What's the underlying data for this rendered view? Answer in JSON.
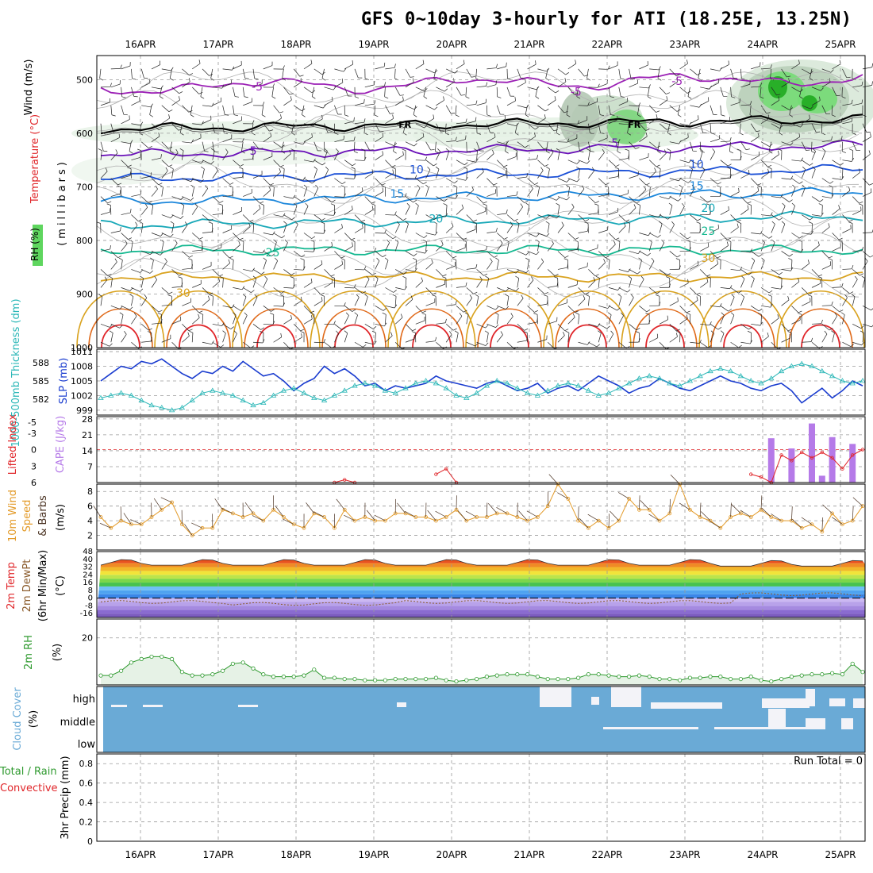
{
  "title": "GFS 0~10day 3-hourly for ATI (18.25E, 13.25N)",
  "date_labels": [
    "16APR",
    "17APR",
    "18APR",
    "19APR",
    "20APR",
    "21APR",
    "22APR",
    "23APR",
    "24APR",
    "25APR"
  ],
  "colors": {
    "freezing": "#000000",
    "t_neg": "#9b1fb5",
    "t_5": "#6a11b8",
    "t_10": "#1a4fd6",
    "t_15": "#1a86db",
    "t_20": "#18a8b8",
    "t_25": "#14b890",
    "t_30": "#d9a21e",
    "t_35": "#e06a1a",
    "t_40": "#e0262a",
    "rh": "#5fd65f",
    "slp": "#1a3ccf",
    "thickness": "#2bb7b7",
    "cape": "#b57ae8",
    "li": "#e0262a",
    "wind10": "#e39b2a",
    "rh2m": "#2f9a2f",
    "cloud": "#6aaad6"
  },
  "chart_data": [
    {
      "type": "contour",
      "panel": "upper_air",
      "ylabel_parts": [
        "Wind (m/s)",
        "Temperature (°C)",
        "RH (%)",
        "(millibars)"
      ],
      "yticks": [
        500,
        600,
        700,
        800,
        900,
        1000
      ],
      "ylim": [
        1000,
        455
      ],
      "contour_labels": [
        {
          "text": "-5",
          "x": 1.5,
          "p": 520
        },
        {
          "text": "-5",
          "x": 6.9,
          "p": 510
        },
        {
          "text": "-5",
          "x": 5.6,
          "p": 530
        },
        {
          "text": "5",
          "x": 1.45,
          "p": 640
        },
        {
          "text": "5",
          "x": 6.1,
          "p": 625
        },
        {
          "text": "FR",
          "x": 3.4,
          "p": 590
        },
        {
          "text": "FR",
          "x": 6.35,
          "p": 590
        },
        {
          "text": "10",
          "x": 3.55,
          "p": 675
        },
        {
          "text": "10",
          "x": 7.15,
          "p": 665
        },
        {
          "text": "15",
          "x": 3.3,
          "p": 720
        },
        {
          "text": "15",
          "x": 7.15,
          "p": 705
        },
        {
          "text": "20",
          "x": 3.8,
          "p": 767
        },
        {
          "text": "20",
          "x": 7.3,
          "p": 747
        },
        {
          "text": "25",
          "x": 1.7,
          "p": 830
        },
        {
          "text": "25",
          "x": 7.3,
          "p": 790
        },
        {
          "text": "30",
          "x": 0.55,
          "p": 905
        },
        {
          "text": "30",
          "x": 7.3,
          "p": 840
        }
      ],
      "isotherms": [
        {
          "label": "-5",
          "colorKey": "t_neg",
          "base": 515
        },
        {
          "label": "FR",
          "colorKey": "freezing",
          "base": 592
        },
        {
          "label": "5",
          "colorKey": "t_5",
          "base": 640
        },
        {
          "label": "10",
          "colorKey": "t_10",
          "base": 685
        },
        {
          "label": "15",
          "colorKey": "t_15",
          "base": 728
        },
        {
          "label": "20",
          "colorKey": "t_20",
          "base": 772
        },
        {
          "label": "25",
          "colorKey": "t_25",
          "base": 818
        },
        {
          "label": "30",
          "colorKey": "t_30",
          "base": 868
        }
      ]
    },
    {
      "type": "line",
      "panel": "slp_thickness",
      "ylabel_left": "1000-500mb Thickness (dm)",
      "ylabel_right": "SLP (mb)",
      "yticks_left": [
        582,
        585,
        588
      ],
      "yticks_right": [
        999,
        1002,
        1005,
        1008,
        1011
      ],
      "ylim_right": [
        998,
        1011.5
      ],
      "series": [
        {
          "colorKey": "slp",
          "values": [
            1005,
            1006.5,
            1008,
            1007.5,
            1009,
            1008.5,
            1009.5,
            1008,
            1006.5,
            1005.5,
            1007,
            1006.5,
            1008,
            1007,
            1009,
            1007.5,
            1006,
            1006.5,
            1005,
            1003,
            1004.5,
            1005.5,
            1008,
            1006.5,
            1007.5,
            1006,
            1004,
            1004.5,
            1003,
            1004,
            1003.5,
            1004,
            1004.5,
            1006,
            1005,
            1004.5,
            1004,
            1003.5,
            1004.5,
            1005,
            1004,
            1003,
            1003.5,
            1004.5,
            1002.5,
            1003.5,
            1004,
            1003,
            1004.5,
            1006,
            1005,
            1004,
            1002.5,
            1003.5,
            1004,
            1005.5,
            1004.5,
            1003.5,
            1003,
            1004,
            1005,
            1006,
            1005,
            1004.5,
            1003.5,
            1003,
            1004,
            1004.5,
            1003,
            1000.5,
            1002,
            1003.5,
            1001.5,
            1003,
            1005,
            1004
          ]
        },
        {
          "colorKey": "thickness",
          "values": [
            1001.5,
            1002,
            1002.5,
            1002,
            1001,
            1000,
            999.5,
            999,
            999.5,
            1001,
            1002.5,
            1003,
            1002.5,
            1002,
            1001,
            1000,
            1000.5,
            1002,
            1003,
            1003.5,
            1002.5,
            1001.5,
            1001,
            1002,
            1003,
            1004,
            1004.5,
            1004,
            1003,
            1002.5,
            1003.5,
            1004.5,
            1005,
            1004.5,
            1003.5,
            1002,
            1001.5,
            1002.5,
            1004,
            1005,
            1004.5,
            1003.5,
            1002.5,
            1002,
            1003,
            1004,
            1004.5,
            1004,
            1003,
            1002,
            1002.5,
            1003.5,
            1004.5,
            1005.5,
            1006,
            1005.5,
            1004.5,
            1004,
            1005,
            1006,
            1007,
            1007.5,
            1007,
            1006,
            1005,
            1004.5,
            1005.5,
            1007,
            1008,
            1008.5,
            1008,
            1007,
            1006,
            1005,
            1004.5,
            1005
          ]
        }
      ]
    },
    {
      "type": "bar",
      "panel": "cape_li",
      "ylabel_left": "Lifted Index",
      "ylabel_right": "CAPE (J/kg)",
      "yticks_left": [
        -5,
        -3,
        0,
        3,
        6
      ],
      "yticks_right": [
        7,
        14,
        21,
        28
      ],
      "ylim_right": [
        0,
        29
      ],
      "series": [
        {
          "name": "CAPE",
          "colorKey": "cape",
          "values": [
            0,
            0,
            0,
            0,
            0,
            0,
            0,
            0,
            0,
            0,
            0,
            0,
            0,
            0,
            0,
            0,
            0,
            0,
            0,
            0,
            0,
            0,
            0,
            0,
            0,
            0,
            0,
            0,
            0,
            0,
            0,
            0,
            0,
            0,
            0,
            0,
            0,
            0,
            0,
            0,
            0,
            0,
            0,
            0,
            0,
            0,
            0,
            0,
            0,
            0,
            0,
            0,
            0,
            0,
            0,
            0,
            0,
            0,
            0,
            0,
            0,
            0,
            0,
            0,
            0,
            0,
            19.5,
            0,
            15,
            0,
            26,
            3,
            20,
            0,
            17,
            0
          ]
        },
        {
          "name": "LI",
          "colorKey": "li",
          "values": [
            99,
            99,
            99,
            99,
            99,
            99,
            99,
            99,
            99,
            99,
            99,
            99,
            99,
            99,
            99,
            99,
            99,
            99,
            99,
            99,
            99,
            99,
            99,
            6,
            5.5,
            6,
            99,
            99,
            99,
            99,
            99,
            99,
            99,
            4.5,
            3.5,
            6,
            99,
            99,
            99,
            99,
            99,
            99,
            99,
            99,
            99,
            99,
            99,
            99,
            99,
            99,
            99,
            99,
            99,
            99,
            99,
            99,
            99,
            99,
            99,
            99,
            99,
            99,
            99,
            99,
            4.5,
            5,
            6,
            1,
            2,
            0.5,
            1.5,
            0.5,
            1.5,
            3.5,
            1,
            0
          ]
        }
      ]
    },
    {
      "type": "line",
      "panel": "wind10m",
      "ylabel": "10m Wind Speed & Barbs (m/s)",
      "yticks": [
        2,
        4,
        6,
        8
      ],
      "ylim": [
        0,
        9
      ],
      "series": [
        {
          "name": "Speed",
          "colorKey": "wind10",
          "values": [
            4.5,
            3,
            4,
            3.5,
            3.5,
            4.5,
            5.5,
            6.5,
            3.5,
            2,
            3,
            3,
            5.5,
            5,
            4.5,
            5,
            4,
            5.5,
            4.5,
            3.5,
            3,
            5,
            4.5,
            3,
            5.5,
            4,
            4.5,
            4,
            4,
            5,
            5,
            4.5,
            4.5,
            4,
            4.5,
            5.5,
            4,
            4.5,
            4.5,
            5,
            5,
            4.5,
            4,
            4.5,
            6,
            9,
            7,
            4,
            3,
            4,
            3,
            4,
            7,
            5.5,
            5.5,
            4,
            5,
            9,
            5.5,
            4.5,
            4,
            3,
            4.5,
            5,
            4.5,
            5.5,
            4.5,
            4,
            4,
            3,
            3.5,
            2.5,
            5,
            3.5,
            4,
            6,
            3.5,
            1,
            3,
            3.5,
            3.5,
            8
          ]
        }
      ]
    },
    {
      "type": "area",
      "panel": "temp2m",
      "ylabel": "2m Temp 2m DewPt (6hr Min/Max) (°C)",
      "yticks": [
        -16,
        -8,
        0,
        8,
        16,
        24,
        32,
        40,
        48
      ],
      "ylim": [
        -20,
        48
      ]
    },
    {
      "type": "line",
      "panel": "rh2m",
      "ylabel": "2m RH (%)",
      "yticks": [
        20
      ],
      "ylim": [
        0,
        28
      ],
      "series": [
        {
          "name": "RH",
          "colorKey": "rh2m",
          "values": [
            4,
            4,
            6,
            9.5,
            11,
            12,
            12,
            11,
            5.5,
            4,
            4,
            4.5,
            6,
            9,
            9.5,
            7,
            4.5,
            3.5,
            3.5,
            3.5,
            4,
            6.5,
            3,
            3,
            2.5,
            2.5,
            2,
            2,
            2,
            2.5,
            2.5,
            2.5,
            2.5,
            3,
            2,
            1.5,
            2,
            2.5,
            3.5,
            4,
            4.5,
            4.5,
            4.5,
            3.5,
            2.5,
            2.5,
            2.5,
            3,
            4.5,
            4.5,
            4,
            3.5,
            3.5,
            4,
            3.5,
            2.5,
            2.5,
            2,
            3,
            3,
            3.5,
            3.5,
            2.5,
            2.5,
            3.5,
            2,
            1.5,
            2.5,
            3.5,
            4,
            4.5,
            4.5,
            5,
            4.5,
            9,
            5.5,
            5,
            7,
            10.5,
            14,
            18,
            14,
            15,
            18,
            20
          ]
        }
      ]
    },
    {
      "type": "heatmap",
      "panel": "cloud",
      "ylabel": "Cloud Cover (%)",
      "rows": [
        "high",
        "middle",
        "low"
      ]
    },
    {
      "type": "bar",
      "panel": "precip",
      "ylabel_left": "Total / Rain",
      "ylabel_left2": "Convective",
      "ylabel": "3hr Precip (mm)",
      "yticks": [
        0,
        0.2,
        0.4,
        0.6,
        0.8
      ],
      "ylim": [
        0,
        0.9
      ],
      "run_total": "Run Total = 0",
      "series": []
    }
  ]
}
